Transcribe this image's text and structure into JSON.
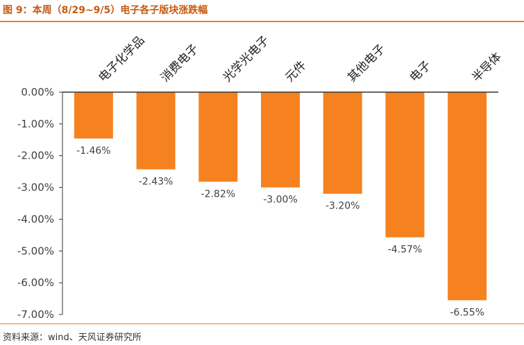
{
  "header": {
    "title": "图 9：本周（8/29~9/5）电子各子版块涨跌幅"
  },
  "footer": {
    "source": "资料来源：wind、天风证券研究所"
  },
  "colors": {
    "bar": "#f5821f",
    "accent": "#e0823a",
    "axis": "#333333",
    "text": "#404040"
  },
  "chart_data": {
    "type": "bar",
    "title": "",
    "xlabel": "",
    "ylabel": "",
    "categories": [
      "电子化学品",
      "消费电子",
      "光学光电子",
      "元件",
      "其他电子",
      "电子",
      "半导体"
    ],
    "values": [
      -1.46,
      -2.43,
      -2.82,
      -3.0,
      -3.2,
      -4.57,
      -6.55
    ],
    "data_labels": [
      "-1.46%",
      "-2.43%",
      "-2.82%",
      "-3.00%",
      "-3.20%",
      "-4.57%",
      "-6.55%"
    ],
    "ylim": [
      -7,
      0
    ],
    "yticks": [
      0,
      -1,
      -2,
      -3,
      -4,
      -5,
      -6,
      -7
    ],
    "ytick_labels": [
      "0.00%",
      "-1.00%",
      "-2.00%",
      "-3.00%",
      "-4.00%",
      "-5.00%",
      "-6.00%",
      "-7.00%"
    ],
    "grid": false,
    "legend": "none"
  }
}
